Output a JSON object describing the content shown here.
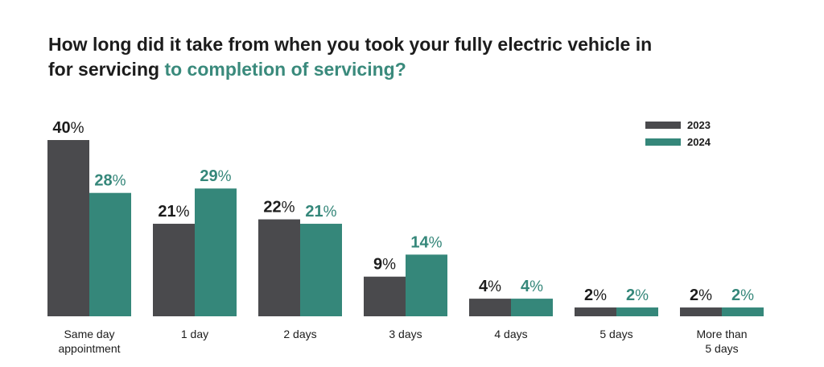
{
  "title": {
    "part1": "How long did it take from when you took your fully electric vehicle in for servicing",
    "highlight": "to completion of servicing?"
  },
  "colors": {
    "s2023": "#4a4a4d",
    "s2024": "#35877a",
    "title_highlight": "#3a8a7c"
  },
  "chart_data": {
    "type": "bar",
    "title": "How long did it take from when you took your fully electric vehicle in for servicing to completion of servicing?",
    "categories": [
      [
        "Same day",
        "appointment"
      ],
      [
        "1 day"
      ],
      [
        "2 days"
      ],
      [
        "3 days"
      ],
      [
        "4 days"
      ],
      [
        "5 days"
      ],
      [
        "More than",
        "5 days"
      ]
    ],
    "series": [
      {
        "name": "2023",
        "values": [
          40,
          21,
          22,
          9,
          4,
          2,
          2
        ]
      },
      {
        "name": "2024",
        "values": [
          28,
          29,
          21,
          14,
          4,
          2,
          2
        ]
      }
    ],
    "value_suffix": "%",
    "ylim": [
      0,
      40
    ],
    "grid": false,
    "legend_position": "top-right",
    "xlabel": "",
    "ylabel": ""
  }
}
